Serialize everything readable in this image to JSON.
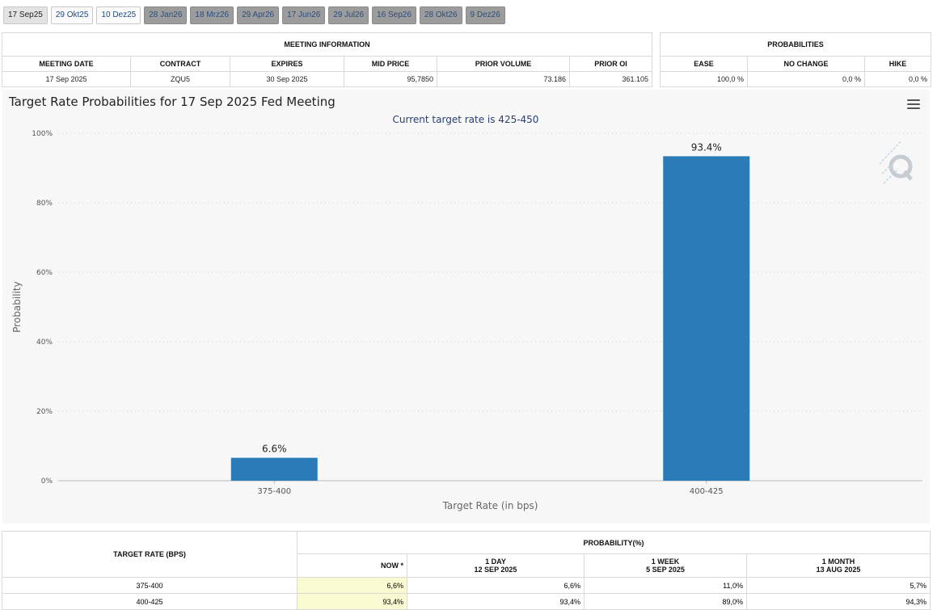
{
  "tabs": [
    {
      "label": "17 Sep25",
      "state": "active"
    },
    {
      "label": "29 Okt25",
      "state": "avail"
    },
    {
      "label": "10 Dez25",
      "state": "avail"
    },
    {
      "label": "28 Jan26",
      "state": "future"
    },
    {
      "label": "18 Mrz26",
      "state": "future"
    },
    {
      "label": "29 Apr26",
      "state": "future"
    },
    {
      "label": "17 Jun26",
      "state": "future"
    },
    {
      "label": "29 Jul26",
      "state": "future"
    },
    {
      "label": "16 Sep26",
      "state": "future"
    },
    {
      "label": "28 Okt26",
      "state": "future"
    },
    {
      "label": "9 Dez26",
      "state": "future"
    }
  ],
  "meeting_info": {
    "title": "MEETING INFORMATION",
    "headers": [
      "MEETING DATE",
      "CONTRACT",
      "EXPIRES",
      "MID PRICE",
      "PRIOR VOLUME",
      "PRIOR OI"
    ],
    "row": [
      "17 Sep 2025",
      "ZQU5",
      "30 Sep 2025",
      "95,7850",
      "73.186",
      "361.105"
    ]
  },
  "probabilities": {
    "title": "PROBABILITIES",
    "headers": [
      "EASE",
      "NO CHANGE",
      "HIKE"
    ],
    "row": [
      "100,0 %",
      "0,0 %",
      "0,0 %"
    ]
  },
  "chart_data": {
    "type": "bar",
    "title": "Target Rate Probabilities for 17 Sep 2025 Fed Meeting",
    "subtitle": "Current target rate is 425-450",
    "xlabel": "Target Rate (in bps)",
    "ylabel": "Probability",
    "categories": [
      "375-400",
      "400-425"
    ],
    "values": [
      6.6,
      93.4
    ],
    "data_labels": [
      "6.6%",
      "93.4%"
    ],
    "ylim": [
      0,
      100
    ],
    "yticks": [
      "0%",
      "20%",
      "40%",
      "60%",
      "80%",
      "100%"
    ],
    "bar_color": "#2b7bb9",
    "grid": true
  },
  "prob_table": {
    "row_header": "TARGET RATE (BPS)",
    "group_header": "PROBABILITY(%)",
    "columns": [
      {
        "line1": "NOW *",
        "line2": ""
      },
      {
        "line1": "1 DAY",
        "line2": "12 SEP 2025"
      },
      {
        "line1": "1 WEEK",
        "line2": "5 SEP 2025"
      },
      {
        "line1": "1 MONTH",
        "line2": "13 AUG 2025"
      }
    ],
    "rows": [
      {
        "rate": "375-400",
        "values": [
          "6,6%",
          "6,6%",
          "11,0%",
          "5,7%"
        ]
      },
      {
        "rate": "400-425",
        "values": [
          "93,4%",
          "93,4%",
          "89,0%",
          "94,3%"
        ]
      }
    ]
  },
  "icons": {
    "menu": "hamburger-menu-icon",
    "watermark": "q-logo-watermark"
  }
}
